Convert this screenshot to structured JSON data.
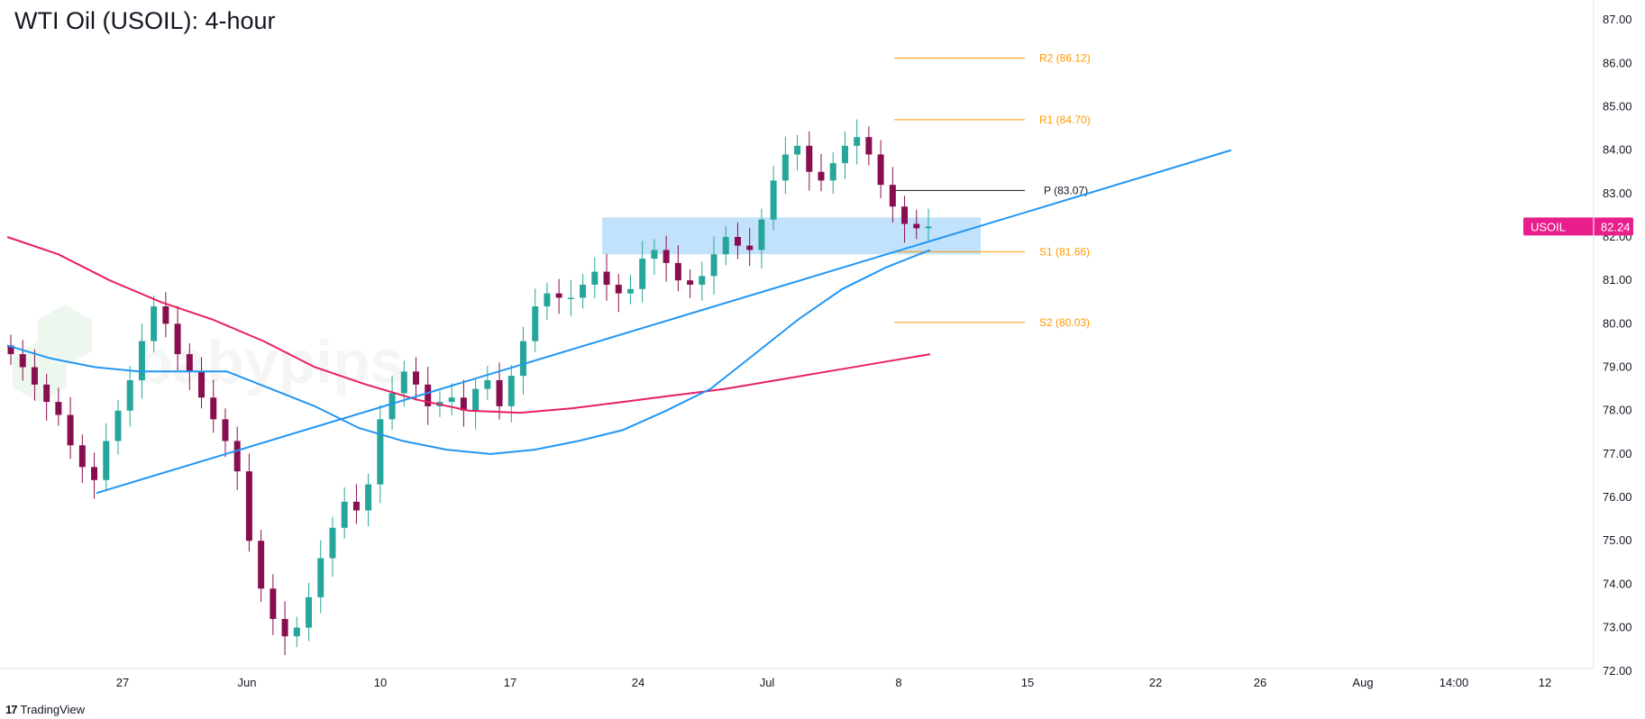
{
  "title": "WTI Oil (USOIL): 4-hour",
  "branding": {
    "tradingview": "TradingView",
    "watermark": "babypips"
  },
  "colors": {
    "up": "#26a69a",
    "down": "#880e4f",
    "ma_fast": "#2196f3",
    "ma_slow": "#e91e63",
    "trendline": "#2196f3",
    "zone": "#90caf9",
    "pivot_sr": "#ff9800",
    "pivot_p": "#131722",
    "price_tag": "#e91e8c"
  },
  "price_tag": {
    "symbol": "USOIL",
    "value": "82.24"
  },
  "chart_data": {
    "type": "candlestick",
    "y_ticks": [
      "87.00",
      "86.00",
      "85.00",
      "84.00",
      "83.00",
      "82.00",
      "81.00",
      "80.00",
      "79.00",
      "78.00",
      "77.00",
      "76.00",
      "75.00",
      "74.00",
      "73.00",
      "72.00"
    ],
    "ylim": [
      71.85,
      87.5
    ],
    "x_ticks": [
      "27",
      "Jun",
      "10",
      "17",
      "24",
      "Jul",
      "8",
      "15",
      "22",
      "26",
      "Aug",
      "14:00",
      "12"
    ],
    "pivots": [
      {
        "label": "R2 (86.12)",
        "value": 86.12
      },
      {
        "label": "R1 (84.70)",
        "value": 84.7
      },
      {
        "label": "P (83.07)",
        "value": 83.07
      },
      {
        "label": "S1 (81.66)",
        "value": 81.66
      },
      {
        "label": "S2 (80.03)",
        "value": 80.03
      }
    ],
    "zone": {
      "low": 81.6,
      "high": 82.45
    },
    "trendline": {
      "from": {
        "x": "May 24",
        "y": 76.1
      },
      "to": {
        "x": "Jul 23",
        "y": 84.0
      }
    },
    "series": [
      {
        "name": "",
        "description": "price",
        "values": [
          79.3,
          79.0,
          78.6,
          78.2,
          77.9,
          77.2,
          76.7,
          76.4,
          77.3,
          78.0,
          78.7,
          79.6,
          80.4,
          80.0,
          79.3,
          78.9,
          78.3,
          77.8,
          77.3,
          76.6,
          75.0,
          73.9,
          73.2,
          72.8,
          73.0,
          73.7,
          74.6,
          75.3,
          75.9,
          75.7,
          76.3,
          77.8,
          78.4,
          78.9,
          78.6,
          78.1,
          78.2,
          78.3,
          78.0,
          78.5,
          78.7,
          78.1,
          78.8,
          79.6,
          80.4,
          80.7,
          80.6,
          80.6,
          80.9,
          81.2,
          80.9,
          80.7,
          80.8,
          81.5,
          81.7,
          81.4,
          81.0,
          80.9,
          81.1,
          81.6,
          82.0,
          81.8,
          81.7,
          82.4,
          83.3,
          83.9,
          84.1,
          83.5,
          83.3,
          83.7,
          84.1,
          84.3,
          83.9,
          83.2,
          82.7,
          82.3,
          82.2,
          82.24
        ]
      },
      {
        "name": "",
        "description": "fast moving average",
        "values": [
          79.5,
          79.2,
          79.0,
          78.9,
          78.9,
          78.9,
          78.5,
          78.1,
          77.6,
          77.3,
          77.1,
          77.0,
          77.1,
          77.3,
          77.55,
          78.0,
          78.5,
          79.3,
          80.1,
          80.8,
          81.3,
          81.7
        ]
      },
      {
        "name": "",
        "description": "slow moving average",
        "values": [
          82.0,
          81.6,
          81.0,
          80.5,
          80.1,
          79.6,
          79.0,
          78.6,
          78.25,
          78.0,
          77.95,
          78.05,
          78.2,
          78.35,
          78.5,
          78.7,
          78.9,
          79.1,
          79.3
        ]
      }
    ]
  }
}
